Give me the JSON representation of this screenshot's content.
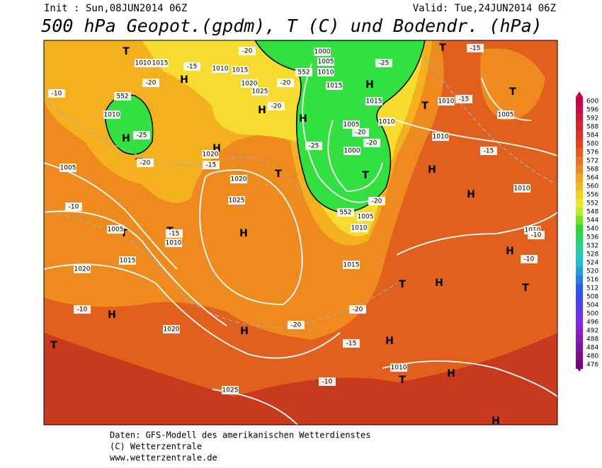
{
  "header": {
    "init": "Init : Sun,08JUN2014 06Z",
    "valid": "Valid: Tue,24JUN2014 06Z",
    "title": "500 hPa Geopot.(gpdm), T (C) und Bodendr. (hPa)"
  },
  "colorbar": [
    "600",
    "596",
    "592",
    "588",
    "584",
    "580",
    "576",
    "572",
    "568",
    "564",
    "560",
    "556",
    "552",
    "548",
    "544",
    "540",
    "536",
    "532",
    "528",
    "524",
    "520",
    "516",
    "512",
    "508",
    "504",
    "500",
    "496",
    "492",
    "488",
    "484",
    "480",
    "476"
  ],
  "map_labels": [
    "H",
    "H",
    "H",
    "H",
    "H",
    "H",
    "H",
    "H",
    "H",
    "H",
    "H",
    "H",
    "H",
    "H",
    "H",
    "H",
    "T",
    "T",
    "T",
    "T",
    "T",
    "T",
    "T",
    "T",
    "T",
    "T",
    "T",
    "T",
    "T",
    "1000",
    "1005",
    "1010",
    "1015",
    "1015",
    "1010",
    "1005",
    "1000",
    "1005",
    "1010",
    "1015",
    "1010",
    "1005",
    "1010",
    "1010",
    "1010",
    "1010",
    "1015",
    "1020",
    "1020",
    "1025",
    "1020",
    "1025",
    "1020",
    "1025",
    "1020",
    "1015",
    "1010",
    "1010",
    "1015",
    "1010",
    "1005",
    "1005",
    "1010",
    "-15",
    "-15",
    "-15",
    "-10",
    "-10",
    "-10",
    "-10",
    "-10",
    "-15",
    "-20",
    "-20",
    "-25",
    "-25",
    "-20",
    "-20",
    "-20",
    "-15",
    "-20",
    "-15",
    "-20",
    "-20",
    "-20",
    "-25",
    "-20",
    "-10",
    "-15",
    "552",
    "552",
    "552"
  ],
  "footer": [
    "Daten: GFS-Modell des amerikanischen Wetterdienstes",
    "(C) Wetterzentrale",
    "www.wetterzentrale.de"
  ]
}
